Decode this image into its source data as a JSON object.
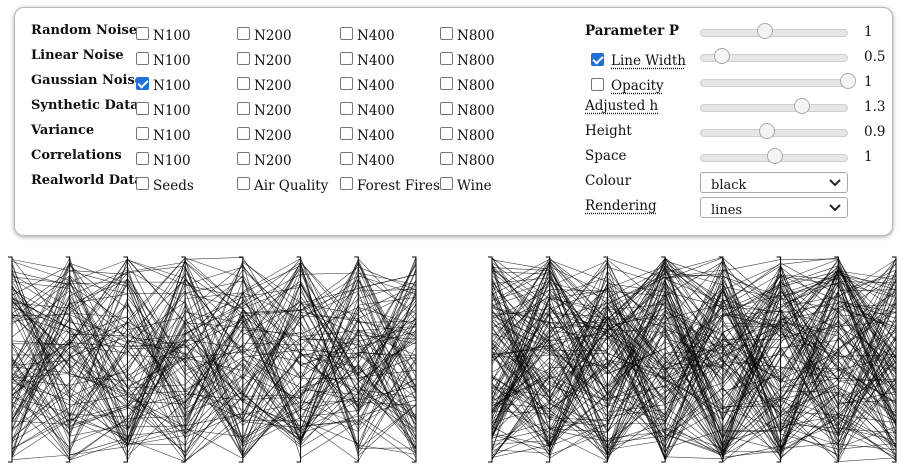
{
  "dataset_rows": [
    {
      "label": "Random Noise",
      "options": [
        "N100",
        "N200",
        "N400",
        "N800"
      ],
      "checked": [
        false,
        false,
        false,
        false
      ]
    },
    {
      "label": "Linear Noise",
      "options": [
        "N100",
        "N200",
        "N400",
        "N800"
      ],
      "checked": [
        false,
        false,
        false,
        false
      ]
    },
    {
      "label": "Gaussian Noise",
      "options": [
        "N100",
        "N200",
        "N400",
        "N800"
      ],
      "checked": [
        true,
        false,
        false,
        false
      ]
    },
    {
      "label": "Synthetic Data",
      "options": [
        "N100",
        "N200",
        "N400",
        "N800"
      ],
      "checked": [
        false,
        false,
        false,
        false
      ]
    },
    {
      "label": "Variance",
      "options": [
        "N100",
        "N200",
        "N400",
        "N800"
      ],
      "checked": [
        false,
        false,
        false,
        false
      ]
    },
    {
      "label": "Correlations",
      "options": [
        "N100",
        "N200",
        "N400",
        "N800"
      ],
      "checked": [
        false,
        false,
        false,
        false
      ]
    },
    {
      "label": "Realworld Data",
      "options": [
        "Seeds",
        "Air Quality",
        "Forest Fires",
        "Wine"
      ],
      "checked": [
        false,
        false,
        false,
        false
      ]
    }
  ],
  "parameters": [
    {
      "label": "Parameter P",
      "value": "1",
      "level": 0.44
    },
    {
      "label": "Line Width",
      "value": "0.5",
      "level": 0.15,
      "checkbox": true
    },
    {
      "label": "Opacity",
      "value": "1",
      "level": 1.0,
      "checkbox": false
    },
    {
      "label": "Adjusted h",
      "value": "1.3",
      "level": 0.69
    },
    {
      "label": "Height",
      "value": "0.9",
      "level": 0.45
    },
    {
      "label": "Space",
      "value": "1",
      "level": 0.51
    }
  ],
  "colour": {
    "label": "Colour",
    "selected": "black"
  },
  "rendering": {
    "label": "Rendering",
    "selected": "lines"
  },
  "colors": {
    "accent": "#1f6fd6",
    "line": "#000000"
  }
}
